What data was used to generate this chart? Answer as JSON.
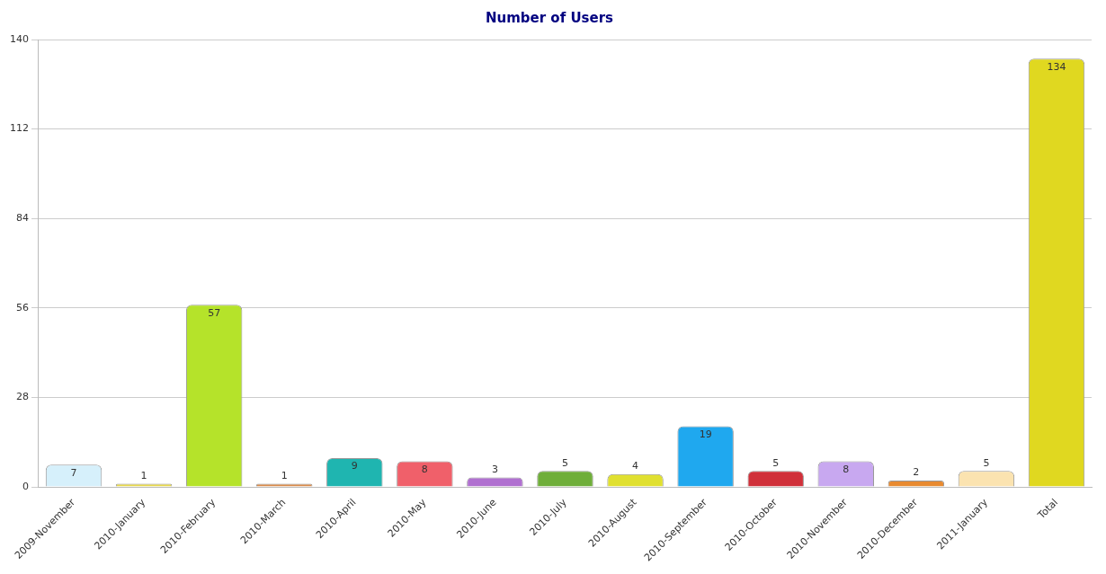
{
  "chart_data": {
    "type": "bar",
    "title": "Number of Users",
    "categories": [
      "2009-November",
      "2010-January",
      "2010-February",
      "2010-March",
      "2010-April",
      "2010-May",
      "2010-June",
      "2010-July",
      "2010-August",
      "2010-September",
      "2010-October",
      "2010-November",
      "2010-December",
      "2011-January",
      "Total"
    ],
    "values": [
      7,
      1,
      57,
      1,
      9,
      8,
      3,
      5,
      4,
      19,
      5,
      8,
      2,
      5,
      134
    ],
    "colors": [
      "#d6f0fb",
      "#e8d84a",
      "#b5e32a",
      "#d98a4a",
      "#1fb5b0",
      "#f0606a",
      "#b070d0",
      "#6fae3a",
      "#e0e030",
      "#1fa8ef",
      "#d0303a",
      "#c8a8f0",
      "#e88a30",
      "#fbe3b0",
      "#e0d820"
    ],
    "ylim": [
      0,
      140
    ],
    "yticks": [
      0,
      28,
      56,
      84,
      112,
      140
    ],
    "grid": "y",
    "data_labels": true
  }
}
